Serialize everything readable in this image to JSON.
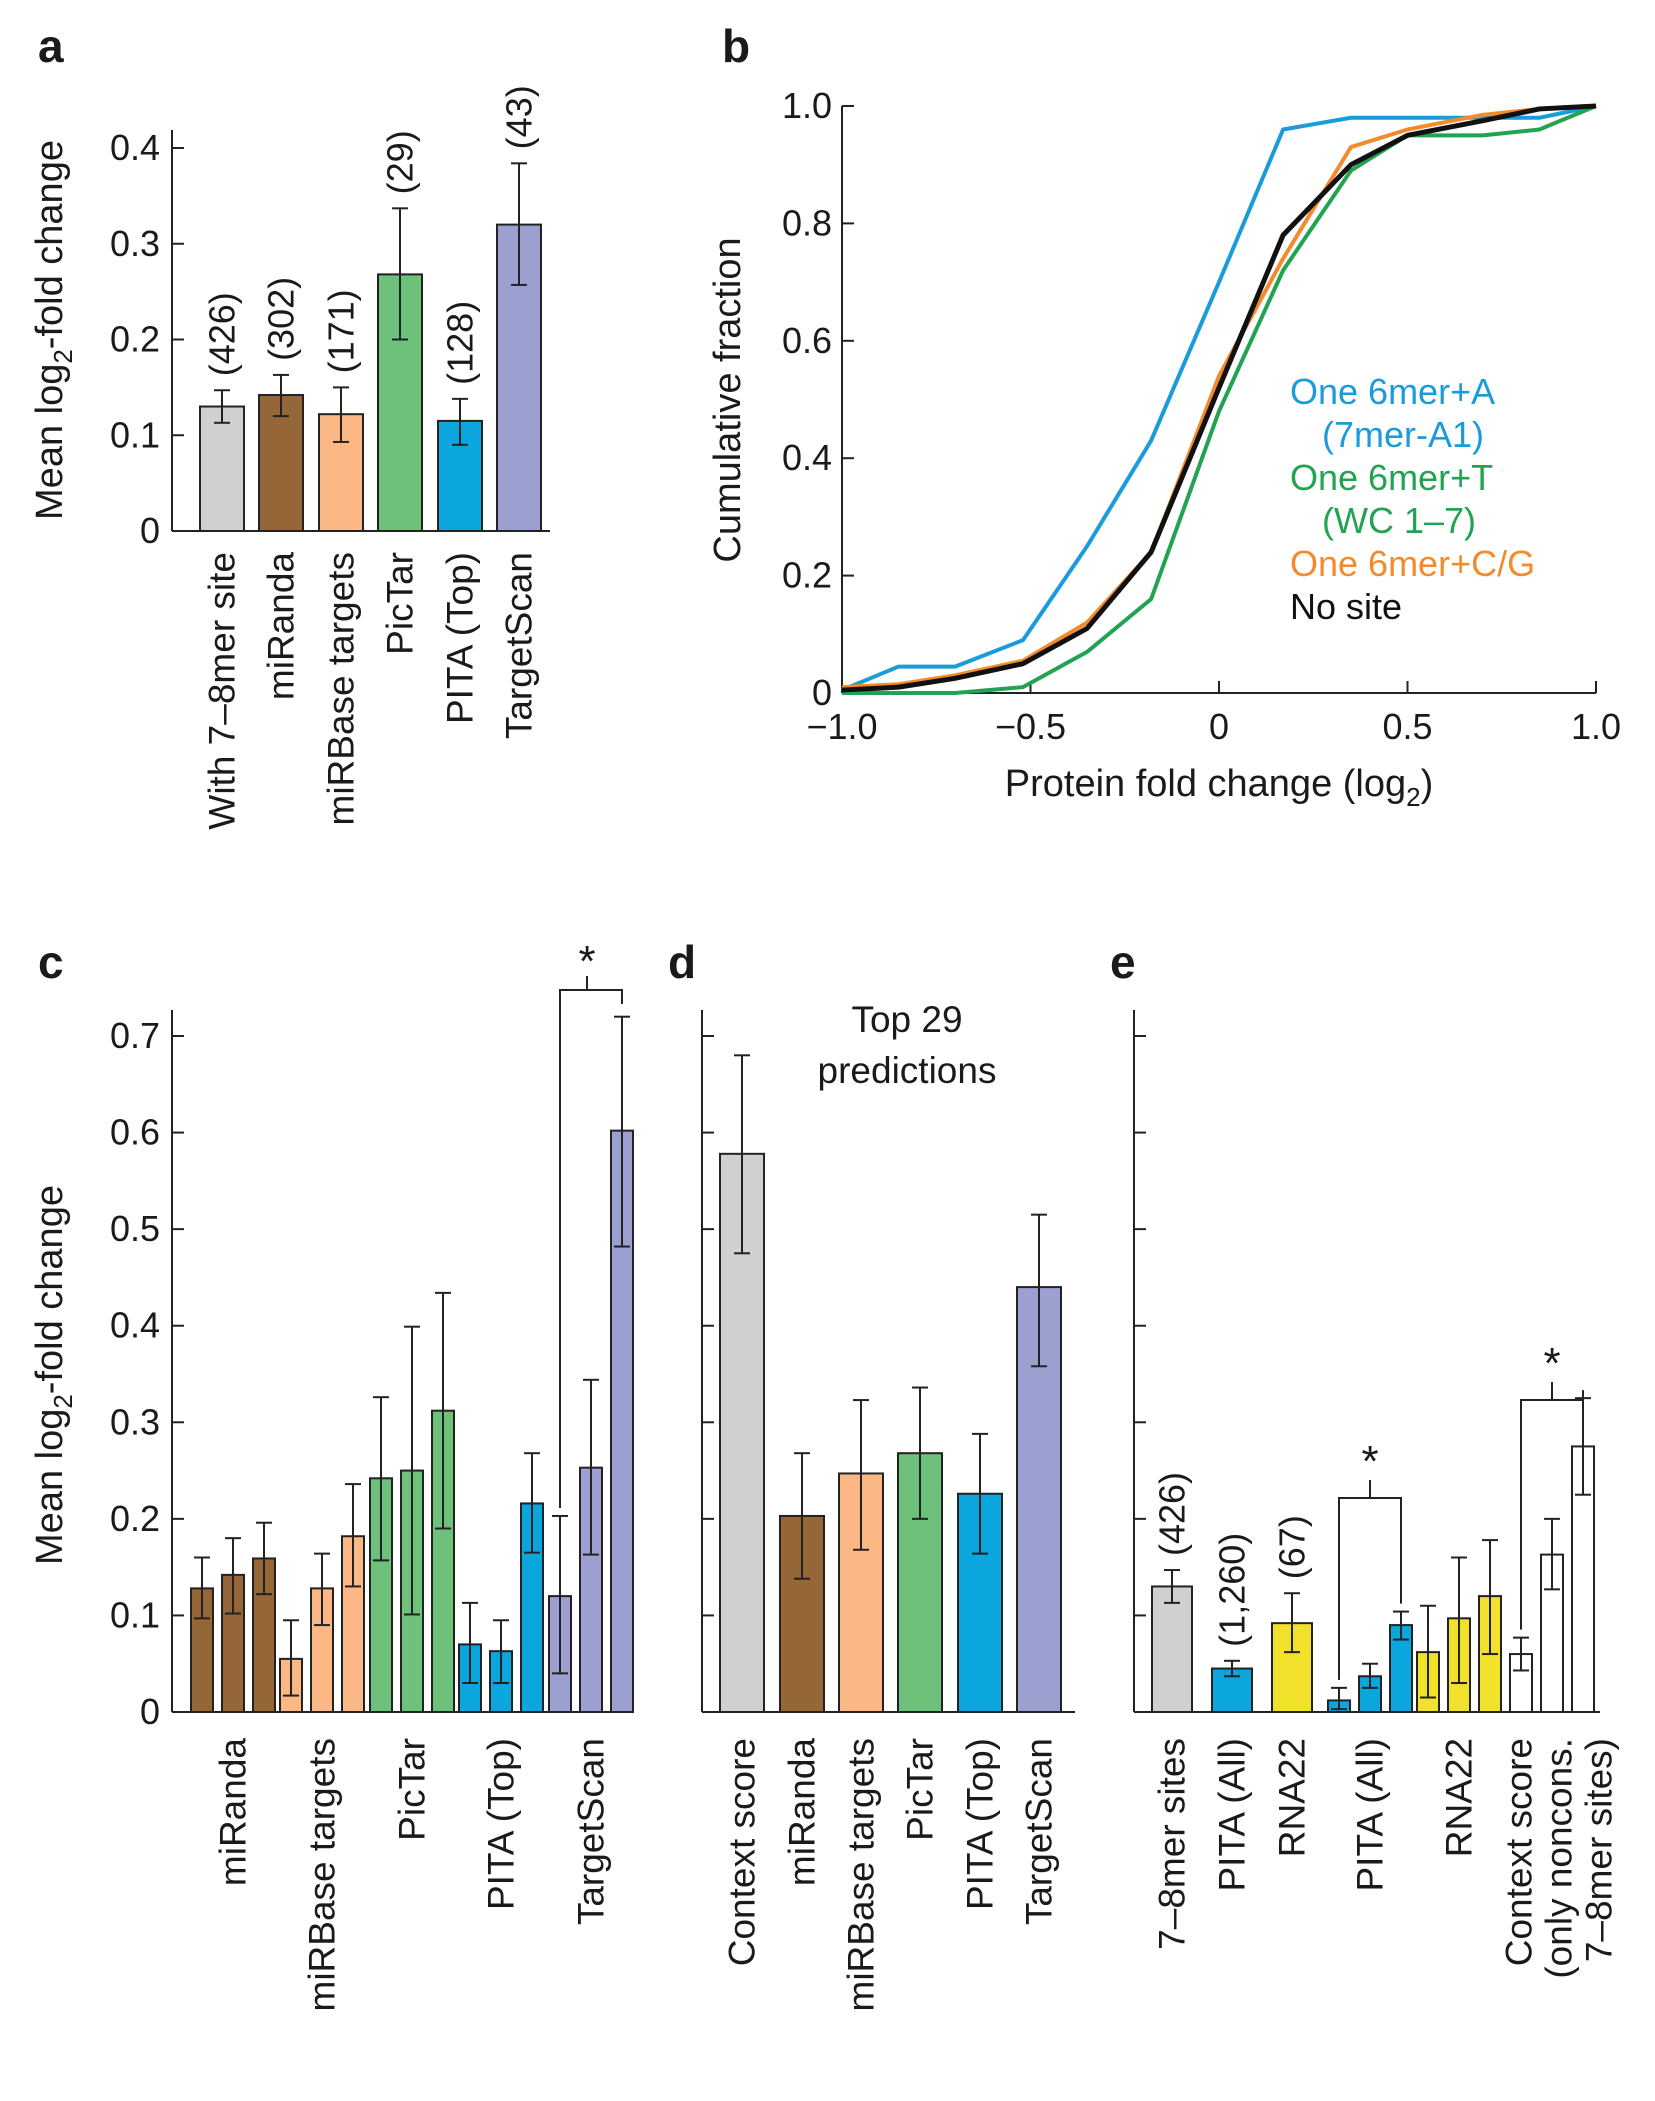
{
  "colors": {
    "grey": "#d0d0d0",
    "brown": "#956638",
    "peach": "#fbb884",
    "green": "#6ec17a",
    "blue": "#0aa6dd",
    "purple": "#9ba0d0",
    "yellow": "#f2e12a",
    "white": "#ffffff",
    "line_blue": "#1a9bdb",
    "line_green": "#22a352",
    "line_orange": "#f38b2d",
    "line_black": "#111111"
  },
  "chart_data": [
    {
      "panel": "a",
      "type": "bar",
      "ylabel_parts": [
        "Mean log",
        "2",
        "-fold change"
      ],
      "ylim": [
        0,
        0.42
      ],
      "yticks": [
        "0",
        "0.1",
        "0.2",
        "0.3",
        "0.4"
      ],
      "categories": [
        "With 7–8mer site",
        "miRanda",
        "miRBase targets",
        "PicTar",
        "PITA (Top)",
        "TargetScan"
      ],
      "values": [
        0.13,
        0.142,
        0.122,
        0.268,
        0.115,
        0.32
      ],
      "errors": [
        [
          0.113,
          0.147
        ],
        [
          0.12,
          0.163
        ],
        [
          0.093,
          0.15
        ],
        [
          0.2,
          0.337
        ],
        [
          0.09,
          0.138
        ],
        [
          0.257,
          0.384
        ]
      ],
      "counts": [
        "(426)",
        "(302)",
        "(171)",
        "(29)",
        "(128)",
        "(43)"
      ],
      "colors": [
        "#d0d0d0",
        "#956638",
        "#fbb884",
        "#6ec17a",
        "#0aa6dd",
        "#9ba0d0"
      ]
    },
    {
      "panel": "b",
      "type": "line",
      "xlabel_parts": [
        "Protein fold change (log",
        "2",
        ")"
      ],
      "ylabel": "Cumulative fraction",
      "xlim": [
        -1.0,
        1.0
      ],
      "ylim": [
        0,
        1.0
      ],
      "xticks": [
        "−1.0",
        "−0.5",
        "0",
        "0.5",
        "1.0"
      ],
      "yticks": [
        "0",
        "0.2",
        "0.4",
        "0.6",
        "0.8",
        "1.0"
      ],
      "series": [
        {
          "name": "One 6mer+A",
          "name2": "(7mer-A1)",
          "color": "#1a9bdb",
          "x": [
            -1.0,
            -0.85,
            -0.7,
            -0.52,
            -0.35,
            -0.18,
            0.0,
            0.17,
            0.35,
            0.5,
            0.85,
            1.0
          ],
          "y": [
            0.005,
            0.045,
            0.045,
            0.09,
            0.25,
            0.43,
            0.7,
            0.96,
            0.98,
            0.98,
            0.98,
            1.0
          ]
        },
        {
          "name": "One 6mer+T",
          "name2": "(WC 1–7)",
          "color": "#22a352",
          "x": [
            -1.0,
            -0.85,
            -0.7,
            -0.52,
            -0.35,
            -0.18,
            0.0,
            0.17,
            0.35,
            0.5,
            0.7,
            0.85,
            1.0
          ],
          "y": [
            0.0,
            0.0,
            0.0,
            0.01,
            0.07,
            0.16,
            0.48,
            0.72,
            0.89,
            0.95,
            0.95,
            0.96,
            1.0
          ]
        },
        {
          "name": "One 6mer+C/G",
          "color": "#f38b2d",
          "x": [
            -1.0,
            -0.85,
            -0.7,
            -0.52,
            -0.35,
            -0.18,
            0.0,
            0.17,
            0.35,
            0.5,
            0.7,
            0.85,
            1.0
          ],
          "y": [
            0.01,
            0.015,
            0.03,
            0.055,
            0.12,
            0.24,
            0.54,
            0.74,
            0.93,
            0.96,
            0.985,
            0.995,
            1.0
          ]
        },
        {
          "name": "No site",
          "color": "#111111",
          "x": [
            -1.0,
            -0.85,
            -0.7,
            -0.52,
            -0.35,
            -0.18,
            0.0,
            0.17,
            0.35,
            0.5,
            0.7,
            0.85,
            1.0
          ],
          "y": [
            0.005,
            0.01,
            0.025,
            0.05,
            0.11,
            0.24,
            0.52,
            0.78,
            0.9,
            0.95,
            0.975,
            0.995,
            1.0
          ]
        }
      ]
    },
    {
      "panel": "c",
      "type": "bar",
      "ylabel_parts": [
        "Mean log",
        "2",
        "-fold change"
      ],
      "ylim": [
        0,
        0.75
      ],
      "yticks": [
        "0",
        "0.1",
        "0.2",
        "0.3",
        "0.4",
        "0.5",
        "0.6",
        "0.7"
      ],
      "groups": [
        {
          "category": "miRanda",
          "color": "#956638",
          "values": [
            0.128,
            0.142,
            0.159
          ],
          "errors": [
            [
              0.097,
              0.16
            ],
            [
              0.102,
              0.18
            ],
            [
              0.122,
              0.196
            ]
          ]
        },
        {
          "category": "miRBase targets",
          "color": "#fbb884",
          "values": [
            0.055,
            0.128,
            0.182
          ],
          "errors": [
            [
              0.017,
              0.095
            ],
            [
              0.09,
              0.164
            ],
            [
              0.13,
              0.236
            ]
          ]
        },
        {
          "category": "PicTar",
          "color": "#6ec17a",
          "values": [
            0.242,
            0.25,
            0.312
          ],
          "errors": [
            [
              0.157,
              0.326
            ],
            [
              0.101,
              0.399
            ],
            [
              0.19,
              0.434
            ]
          ]
        },
        {
          "category": "PITA (Top)",
          "color": "#0aa6dd",
          "values": [
            0.07,
            0.063,
            0.216
          ],
          "errors": [
            [
              0.03,
              0.113
            ],
            [
              0.03,
              0.095
            ],
            [
              0.165,
              0.268
            ]
          ]
        },
        {
          "category": "TargetScan",
          "color": "#9ba0d0",
          "values": [
            0.12,
            0.253,
            0.602
          ],
          "errors": [
            [
              0.04,
              0.203
            ],
            [
              0.163,
              0.344
            ],
            [
              0.482,
              0.72
            ]
          ]
        }
      ],
      "significance": "*"
    },
    {
      "panel": "d",
      "type": "bar",
      "title_lines": [
        "Top 29",
        "predictions"
      ],
      "ylim": [
        0,
        0.75
      ],
      "categories": [
        "Context score",
        "miRanda",
        "miRBase targets",
        "PicTar",
        "PITA (Top)",
        "TargetScan"
      ],
      "values": [
        0.578,
        0.203,
        0.247,
        0.268,
        0.226,
        0.44
      ],
      "errors": [
        [
          0.475,
          0.68
        ],
        [
          0.138,
          0.268
        ],
        [
          0.168,
          0.323
        ],
        [
          0.2,
          0.336
        ],
        [
          0.164,
          0.288
        ],
        [
          0.358,
          0.515
        ]
      ],
      "colors": [
        "#d0d0d0",
        "#956638",
        "#fbb884",
        "#6ec17a",
        "#0aa6dd",
        "#9ba0d0"
      ]
    },
    {
      "panel": "e",
      "type": "bar",
      "ylim": [
        0,
        0.75
      ],
      "categories": [
        "7–8mer sites",
        "PITA (All)",
        "RNA22",
        "PITA (All)",
        "RNA22",
        "Context score",
        "(only noncons.",
        "7–8mer sites)"
      ],
      "singles": [
        {
          "value": 0.13,
          "error": [
            0.113,
            0.147
          ],
          "color": "#d0d0d0",
          "count": "(426)"
        },
        {
          "value": 0.045,
          "error": [
            0.037,
            0.053
          ],
          "color": "#0aa6dd",
          "count": "(1,260)"
        },
        {
          "value": 0.092,
          "error": [
            0.062,
            0.123
          ],
          "color": "#f2e12a",
          "count": "(67)"
        }
      ],
      "groups": [
        {
          "color": "#0aa6dd",
          "values": [
            0.012,
            0.037,
            0.09
          ],
          "errors": [
            [
              0.003,
              0.025
            ],
            [
              0.025,
              0.05
            ],
            [
              0.075,
              0.104
            ]
          ]
        },
        {
          "color": "#f2e12a",
          "values": [
            0.062,
            0.097,
            0.12
          ],
          "errors": [
            [
              0.015,
              0.11
            ],
            [
              0.03,
              0.16
            ],
            [
              0.06,
              0.178
            ]
          ]
        },
        {
          "color": "#ffffff",
          "values": [
            0.06,
            0.163,
            0.275
          ],
          "errors": [
            [
              0.043,
              0.077
            ],
            [
              0.127,
              0.2
            ],
            [
              0.225,
              0.325
            ]
          ]
        }
      ],
      "significance": "*"
    }
  ]
}
